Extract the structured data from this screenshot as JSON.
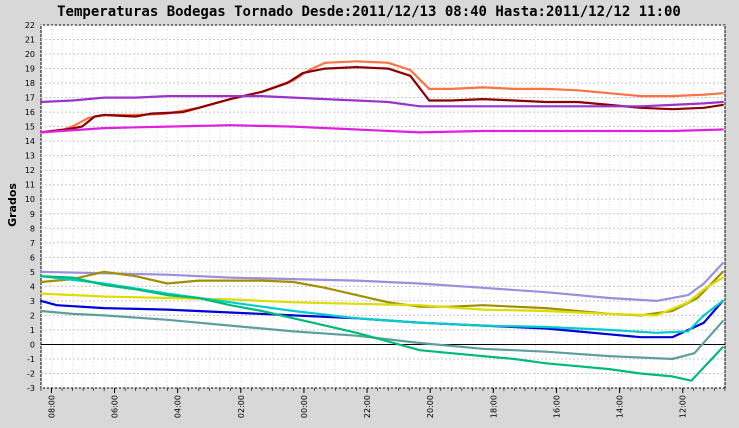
{
  "chart_data": {
    "type": "line",
    "title": "Temperaturas Bodegas Tornado Desde:2011/12/13 08:40 Hasta:2011/12/12 11:00",
    "ylabel": "Grados",
    "xlabel": "",
    "ylim": [
      -3,
      22
    ],
    "yticks": [
      -3,
      -2,
      -1,
      0,
      1,
      2,
      3,
      4,
      5,
      6,
      7,
      8,
      9,
      10,
      11,
      12,
      13,
      14,
      15,
      16,
      17,
      18,
      19,
      20,
      21,
      22
    ],
    "x_range_hours": [
      0,
      21.67
    ],
    "x_ticks": [
      {
        "label": "08:00",
        "x": 0.33
      },
      {
        "label": "06:00",
        "x": 2.33
      },
      {
        "label": "04:00",
        "x": 4.33
      },
      {
        "label": "02:00",
        "x": 6.33
      },
      {
        "label": "00:00",
        "x": 8.33
      },
      {
        "label": "22:00",
        "x": 10.33
      },
      {
        "label": "20:00",
        "x": 12.33
      },
      {
        "label": "18:00",
        "x": 14.33
      },
      {
        "label": "16:00",
        "x": 16.33
      },
      {
        "label": "14:00",
        "x": 18.33
      },
      {
        "label": "12:00",
        "x": 20.33
      }
    ],
    "grid": true,
    "series": [
      {
        "color": "#ff7043",
        "points": [
          [
            0,
            14.6
          ],
          [
            0.7,
            14.8
          ],
          [
            1,
            15.0
          ],
          [
            1.5,
            15.6
          ],
          [
            2,
            15.8
          ],
          [
            3,
            15.8
          ],
          [
            4,
            15.9
          ],
          [
            5,
            16.3
          ],
          [
            6,
            16.9
          ],
          [
            7,
            17.4
          ],
          [
            8,
            18.2
          ],
          [
            8.5,
            18.9
          ],
          [
            9,
            19.4
          ],
          [
            10,
            19.5
          ],
          [
            11,
            19.4
          ],
          [
            11.7,
            18.9
          ],
          [
            12.3,
            17.6
          ],
          [
            13,
            17.6
          ],
          [
            14,
            17.7
          ],
          [
            15,
            17.6
          ],
          [
            16,
            17.6
          ],
          [
            17,
            17.5
          ],
          [
            18,
            17.3
          ],
          [
            19,
            17.1
          ],
          [
            20,
            17.1
          ],
          [
            21,
            17.2
          ],
          [
            21.6,
            17.3
          ]
        ]
      },
      {
        "color": "#8b0000",
        "points": [
          [
            0,
            14.6
          ],
          [
            0.8,
            14.8
          ],
          [
            1.3,
            15.0
          ],
          [
            1.7,
            15.7
          ],
          [
            2,
            15.8
          ],
          [
            3,
            15.7
          ],
          [
            3.5,
            15.9
          ],
          [
            4.5,
            16.0
          ],
          [
            5,
            16.3
          ],
          [
            6,
            16.9
          ],
          [
            7,
            17.4
          ],
          [
            7.8,
            18.0
          ],
          [
            8.3,
            18.7
          ],
          [
            9,
            19.0
          ],
          [
            10,
            19.1
          ],
          [
            11,
            19.0
          ],
          [
            11.7,
            18.5
          ],
          [
            12.3,
            16.8
          ],
          [
            13,
            16.8
          ],
          [
            14,
            16.9
          ],
          [
            15,
            16.8
          ],
          [
            16,
            16.7
          ],
          [
            17,
            16.7
          ],
          [
            18,
            16.5
          ],
          [
            19,
            16.3
          ],
          [
            20,
            16.2
          ],
          [
            21,
            16.3
          ],
          [
            21.6,
            16.5
          ]
        ]
      },
      {
        "color": "#9933cc",
        "points": [
          [
            0,
            16.7
          ],
          [
            1,
            16.8
          ],
          [
            2,
            17.0
          ],
          [
            3,
            17.0
          ],
          [
            4,
            17.1
          ],
          [
            5,
            17.1
          ],
          [
            6,
            17.1
          ],
          [
            7,
            17.1
          ],
          [
            8,
            17.0
          ],
          [
            9,
            16.9
          ],
          [
            10,
            16.8
          ],
          [
            11,
            16.7
          ],
          [
            12,
            16.4
          ],
          [
            13,
            16.4
          ],
          [
            14,
            16.4
          ],
          [
            15,
            16.4
          ],
          [
            16,
            16.4
          ],
          [
            17,
            16.4
          ],
          [
            18,
            16.4
          ],
          [
            19,
            16.4
          ],
          [
            20,
            16.5
          ],
          [
            21,
            16.6
          ],
          [
            21.6,
            16.7
          ]
        ]
      },
      {
        "color": "#e020e0",
        "points": [
          [
            0,
            14.6
          ],
          [
            2,
            14.9
          ],
          [
            4,
            15.0
          ],
          [
            6,
            15.1
          ],
          [
            8,
            15.0
          ],
          [
            10,
            14.8
          ],
          [
            12,
            14.6
          ],
          [
            14,
            14.7
          ],
          [
            16,
            14.7
          ],
          [
            18,
            14.7
          ],
          [
            20,
            14.7
          ],
          [
            21.6,
            14.8
          ]
        ]
      },
      {
        "color": "#9a8fdc",
        "points": [
          [
            0,
            5.0
          ],
          [
            2,
            4.9
          ],
          [
            4,
            4.8
          ],
          [
            6,
            4.6
          ],
          [
            8,
            4.5
          ],
          [
            10,
            4.4
          ],
          [
            12,
            4.2
          ],
          [
            14,
            3.9
          ],
          [
            16,
            3.6
          ],
          [
            18,
            3.2
          ],
          [
            19.5,
            3.0
          ],
          [
            20.5,
            3.4
          ],
          [
            21,
            4.2
          ],
          [
            21.6,
            5.6
          ]
        ]
      },
      {
        "color": "#a09000",
        "points": [
          [
            0,
            4.3
          ],
          [
            1,
            4.5
          ],
          [
            2,
            5.0
          ],
          [
            3,
            4.7
          ],
          [
            4,
            4.2
          ],
          [
            5,
            4.4
          ],
          [
            6,
            4.4
          ],
          [
            7,
            4.4
          ],
          [
            8,
            4.3
          ],
          [
            9,
            3.9
          ],
          [
            10,
            3.4
          ],
          [
            11,
            2.9
          ],
          [
            12,
            2.6
          ],
          [
            13,
            2.6
          ],
          [
            14,
            2.7
          ],
          [
            15,
            2.6
          ],
          [
            16,
            2.5
          ],
          [
            17,
            2.3
          ],
          [
            18,
            2.1
          ],
          [
            19,
            2.0
          ],
          [
            20,
            2.3
          ],
          [
            20.8,
            3.2
          ],
          [
            21.6,
            5.0
          ]
        ]
      },
      {
        "color": "#dddd00",
        "points": [
          [
            0,
            3.5
          ],
          [
            2,
            3.3
          ],
          [
            4,
            3.2
          ],
          [
            6,
            3.1
          ],
          [
            8,
            2.9
          ],
          [
            10,
            2.8
          ],
          [
            12,
            2.7
          ],
          [
            14,
            2.4
          ],
          [
            16,
            2.3
          ],
          [
            18,
            2.1
          ],
          [
            19.5,
            2.0
          ],
          [
            20.5,
            2.9
          ],
          [
            21,
            3.8
          ],
          [
            21.6,
            4.6
          ]
        ]
      },
      {
        "color": "#0000dd",
        "points": [
          [
            0,
            3.0
          ],
          [
            0.5,
            2.7
          ],
          [
            2,
            2.5
          ],
          [
            4,
            2.4
          ],
          [
            6,
            2.2
          ],
          [
            8,
            2.0
          ],
          [
            10,
            1.8
          ],
          [
            12,
            1.5
          ],
          [
            14,
            1.3
          ],
          [
            16,
            1.1
          ],
          [
            17,
            0.9
          ],
          [
            18,
            0.7
          ],
          [
            19,
            0.5
          ],
          [
            20,
            0.5
          ],
          [
            21,
            1.5
          ],
          [
            21.6,
            3.0
          ]
        ]
      },
      {
        "color": "#00cccc",
        "points": [
          [
            0,
            4.7
          ],
          [
            2,
            4.2
          ],
          [
            4,
            3.5
          ],
          [
            6,
            2.9
          ],
          [
            8,
            2.3
          ],
          [
            10,
            1.8
          ],
          [
            12,
            1.5
          ],
          [
            14,
            1.3
          ],
          [
            16,
            1.2
          ],
          [
            18,
            1.0
          ],
          [
            19.5,
            0.8
          ],
          [
            20.5,
            0.9
          ],
          [
            21,
            2.0
          ],
          [
            21.6,
            3.0
          ]
        ]
      },
      {
        "color": "#5f9e9e",
        "points": [
          [
            0,
            2.3
          ],
          [
            1,
            2.1
          ],
          [
            2,
            2.0
          ],
          [
            4,
            1.7
          ],
          [
            6,
            1.3
          ],
          [
            8,
            0.9
          ],
          [
            10,
            0.6
          ],
          [
            12,
            0.1
          ],
          [
            14,
            -0.3
          ],
          [
            16,
            -0.5
          ],
          [
            18,
            -0.8
          ],
          [
            20,
            -1.0
          ],
          [
            20.7,
            -0.6
          ],
          [
            21.6,
            1.6
          ]
        ]
      },
      {
        "color": "#00bb77",
        "points": [
          [
            0,
            4.7
          ],
          [
            1,
            4.6
          ],
          [
            2,
            4.1
          ],
          [
            3,
            3.8
          ],
          [
            4,
            3.4
          ],
          [
            5,
            3.2
          ],
          [
            6,
            2.7
          ],
          [
            7,
            2.3
          ],
          [
            8,
            1.8
          ],
          [
            9,
            1.3
          ],
          [
            10,
            0.8
          ],
          [
            11,
            0.2
          ],
          [
            12,
            -0.4
          ],
          [
            13,
            -0.6
          ],
          [
            14,
            -0.8
          ],
          [
            15,
            -1.0
          ],
          [
            16,
            -1.3
          ],
          [
            17,
            -1.5
          ],
          [
            18,
            -1.7
          ],
          [
            19,
            -2.0
          ],
          [
            20,
            -2.2
          ],
          [
            20.6,
            -2.5
          ],
          [
            21.6,
            -0.2
          ]
        ]
      }
    ]
  }
}
